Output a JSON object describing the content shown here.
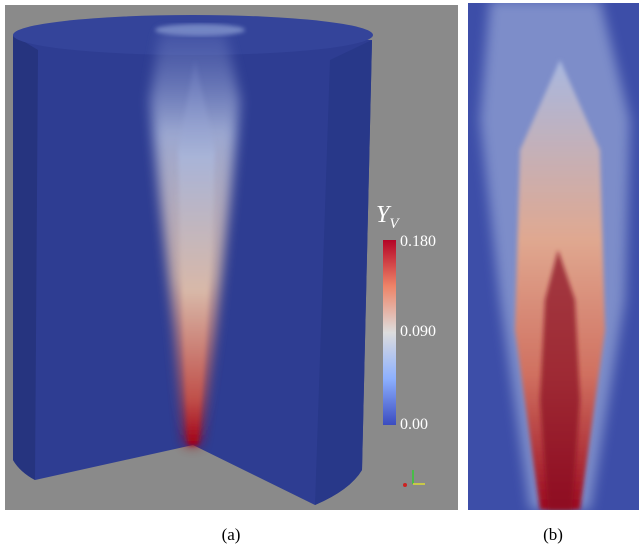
{
  "panels": [
    {
      "colorbar": {
        "title": "Y",
        "subscript": "V",
        "ticks": [
          "0.180",
          "0.090",
          "0.00"
        ]
      },
      "caption": "(a)"
    },
    {
      "caption": "(b)"
    }
  ]
}
